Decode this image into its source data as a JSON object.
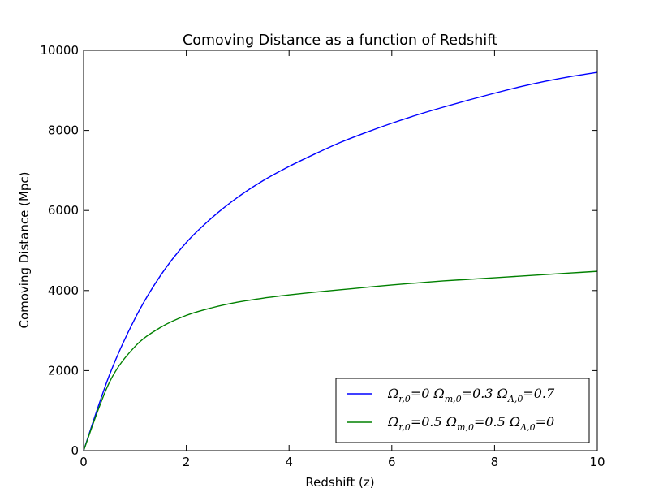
{
  "chart_data": {
    "type": "line",
    "title": "Comoving Distance as a function of Redshift",
    "xlabel": "Redshift (z)",
    "ylabel": "Comoving Distance (Mpc)",
    "xlim": [
      0,
      10
    ],
    "ylim": [
      0,
      10000
    ],
    "xticks": [
      0,
      2,
      4,
      6,
      8,
      10
    ],
    "yticks": [
      0,
      2000,
      4000,
      6000,
      8000,
      10000
    ],
    "x_tick_labels": [
      "0",
      "2",
      "4",
      "6",
      "8",
      "10"
    ],
    "y_tick_labels": [
      "0",
      "2000",
      "4000",
      "6000",
      "8000",
      "10000"
    ],
    "grid": false,
    "legend_position": "lower-right",
    "x": [
      0,
      0.5,
      1,
      1.5,
      2,
      2.5,
      3,
      3.5,
      4,
      4.5,
      5,
      5.5,
      6,
      6.5,
      7,
      7.5,
      8,
      8.5,
      9,
      9.5,
      10
    ],
    "series": [
      {
        "name": "Ω_{r,0}=0 Ω_{m,0}=0.3 Ω_{Λ,0}=0.7",
        "color": "#0000ff",
        "values": [
          0,
          1880,
          3300,
          4380,
          5200,
          5820,
          6330,
          6750,
          7100,
          7410,
          7700,
          7950,
          8180,
          8390,
          8580,
          8760,
          8930,
          9090,
          9230,
          9350,
          9450
        ]
      },
      {
        "name": "Ω_{r,0}=0.5 Ω_{m,0}=0.5 Ω_{Λ,0}=0",
        "color": "#008000",
        "values": [
          0,
          1700,
          2600,
          3080,
          3380,
          3570,
          3710,
          3810,
          3890,
          3960,
          4020,
          4080,
          4140,
          4190,
          4240,
          4280,
          4320,
          4360,
          4400,
          4440,
          4480
        ]
      }
    ]
  }
}
